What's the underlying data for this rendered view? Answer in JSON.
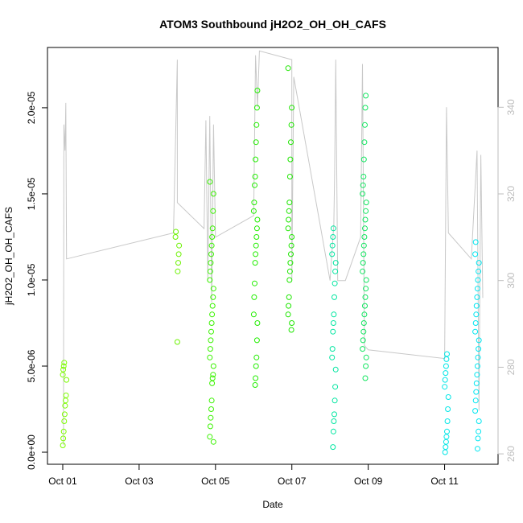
{
  "chart_data": {
    "type": "scatter",
    "title": "ATOM3 Southbound jH2O2_OH_OH_CAFS",
    "xlabel": "Date",
    "ylabel": "jH2O2_OH_OH_CAFS",
    "x_ticks": [
      "Oct 01",
      "Oct 03",
      "Oct 05",
      "Oct 07",
      "Oct 09",
      "Oct 11"
    ],
    "x_tick_days": [
      1,
      3,
      5,
      7,
      9,
      11
    ],
    "xlim": [
      0.6,
      12.4
    ],
    "y_ticks": [
      "0.0e+00",
      "5.0e-06",
      "1.0e-05",
      "1.5e-05",
      "2.0e-05"
    ],
    "y_tick_values": [
      0,
      5e-06,
      1e-05,
      1.5e-05,
      2e-05
    ],
    "ylim": [
      -7e-07,
      2.35e-05
    ],
    "y2_ticks": [
      "260",
      "280",
      "300",
      "320",
      "340"
    ],
    "y2_tick_values": [
      260,
      280,
      300,
      320,
      340
    ],
    "y2lim": [
      257.6,
      353.8
    ],
    "grid": false,
    "legend": "none",
    "colors": {
      "secondary_line": "#c8c8c8",
      "right_axis": "#bdbdbd"
    },
    "series": [
      {
        "day": 1.05,
        "color": "#7cfc00",
        "values": [
          4e-07,
          8e-07,
          1.2e-06,
          1.8e-06,
          2.2e-06,
          2.7e-06,
          3e-06,
          3.3e-06,
          4.2e-06,
          4.5e-06,
          4.8e-06,
          5e-06,
          5.2e-06
        ]
      },
      {
        "day": 4.0,
        "color": "#6cf200",
        "values": [
          6.4e-06,
          1.05e-05,
          1.1e-05,
          1.15e-05,
          1.2e-05,
          1.25e-05,
          1.28e-05
        ]
      },
      {
        "day": 4.9,
        "color": "#3af200",
        "values": [
          6e-07,
          9e-07,
          1.5e-06,
          2e-06,
          2.5e-06,
          3e-06,
          4e-06,
          4.3e-06,
          4.5e-06,
          5e-06,
          5.5e-06,
          6e-06,
          6.5e-06,
          7e-06,
          7.5e-06,
          8e-06,
          8.5e-06,
          9e-06,
          9.5e-06,
          1e-05,
          1.05e-05,
          1.1e-05,
          1.15e-05,
          1.2e-05,
          1.25e-05,
          1.3e-05,
          1.4e-05,
          1.5e-05,
          1.57e-05
        ]
      },
      {
        "day": 6.05,
        "color": "#22ee00",
        "values": [
          3.9e-06,
          4.3e-06,
          5e-06,
          5.5e-06,
          6.5e-06,
          7.5e-06,
          8e-06,
          9e-06,
          9.8e-06,
          1.1e-05,
          1.15e-05,
          1.2e-05,
          1.25e-05,
          1.3e-05,
          1.35e-05,
          1.4e-05,
          1.45e-05,
          1.55e-05,
          1.6e-05,
          1.7e-05,
          1.8e-05,
          1.9e-05,
          2e-05,
          2.1e-05
        ]
      },
      {
        "day": 6.95,
        "color": "#1ee600",
        "values": [
          7.1e-06,
          7.5e-06,
          8e-06,
          8.5e-06,
          9e-06,
          1e-05,
          1.05e-05,
          1.1e-05,
          1.15e-05,
          1.2e-05,
          1.25e-05,
          1.3e-05,
          1.35e-05,
          1.4e-05,
          1.45e-05,
          1.6e-05,
          1.7e-05,
          1.8e-05,
          1.9e-05,
          2e-05,
          2.23e-05
        ]
      },
      {
        "day": 8.1,
        "color": "#00e6a0",
        "values": [
          3e-07,
          1.2e-06,
          1.8e-06,
          2.2e-06,
          3e-06,
          3.8e-06,
          4.8e-06,
          5.5e-06,
          6e-06,
          7e-06,
          7.5e-06,
          8e-06,
          9e-06,
          9.8e-06,
          1.05e-05,
          1.1e-05,
          1.15e-05,
          1.2e-05,
          1.25e-05,
          1.3e-05
        ]
      },
      {
        "day": 8.9,
        "color": "#12e660",
        "values": [
          4.3e-06,
          5e-06,
          5.5e-06,
          6e-06,
          6.5e-06,
          7e-06,
          7.5e-06,
          8e-06,
          8.5e-06,
          9e-06,
          9.5e-06,
          1e-05,
          1.05e-05,
          1.1e-05,
          1.15e-05,
          1.2e-05,
          1.25e-05,
          1.3e-05,
          1.35e-05,
          1.4e-05,
          1.45e-05,
          1.5e-05,
          1.55e-05,
          1.6e-05,
          1.7e-05,
          1.8e-05,
          1.9e-05,
          2e-05,
          2.07e-05
        ]
      },
      {
        "day": 11.05,
        "color": "#00e6e6",
        "values": [
          0.0,
          3e-07,
          6e-07,
          9e-07,
          1.2e-06,
          1.8e-06,
          2.5e-06,
          3.2e-06,
          3.8e-06,
          4.2e-06,
          4.6e-06,
          5e-06,
          5.4e-06,
          5.7e-06
        ]
      },
      {
        "day": 11.85,
        "color": "#00e6f0",
        "values": [
          2e-07,
          8e-07,
          1.2e-06,
          1.8e-06,
          2.4e-06,
          3e-06,
          3.5e-06,
          4e-06,
          4.5e-06,
          5e-06,
          5.5e-06,
          6e-06,
          6.5e-06,
          7e-06,
          7.5e-06,
          8e-06,
          8.5e-06,
          9e-06,
          9.5e-06,
          1e-05,
          1.05e-05,
          1.1e-05,
          1.15e-05,
          1.22e-05
        ]
      }
    ],
    "secondary_series": {
      "color": "#c8c8c8",
      "points": [
        [
          1.02,
          262
        ],
        [
          1.03,
          336
        ],
        [
          1.06,
          330
        ],
        [
          1.08,
          341
        ],
        [
          1.1,
          305
        ],
        [
          3.9,
          311
        ],
        [
          4.0,
          351
        ],
        [
          4.0,
          318
        ],
        [
          4.7,
          312
        ],
        [
          4.75,
          337
        ],
        [
          4.8,
          300
        ],
        [
          4.85,
          338
        ],
        [
          4.9,
          295
        ],
        [
          4.95,
          336
        ],
        [
          5.0,
          310
        ],
        [
          6.0,
          315
        ],
        [
          6.05,
          352
        ],
        [
          6.1,
          340
        ],
        [
          6.15,
          353
        ],
        [
          7.0,
          351
        ],
        [
          7.0,
          300
        ],
        [
          7.05,
          347
        ],
        [
          8.0,
          300
        ],
        [
          8.1,
          313
        ],
        [
          8.12,
          325
        ],
        [
          8.15,
          351
        ],
        [
          8.2,
          300
        ],
        [
          8.4,
          300
        ],
        [
          8.8,
          310
        ],
        [
          8.85,
          350
        ],
        [
          8.9,
          285
        ],
        [
          9.0,
          284
        ],
        [
          11.0,
          282
        ],
        [
          11.05,
          340
        ],
        [
          11.1,
          311
        ],
        [
          11.7,
          305
        ],
        [
          11.85,
          330
        ],
        [
          11.9,
          270
        ],
        [
          11.95,
          329
        ],
        [
          12.0,
          296
        ]
      ]
    }
  }
}
